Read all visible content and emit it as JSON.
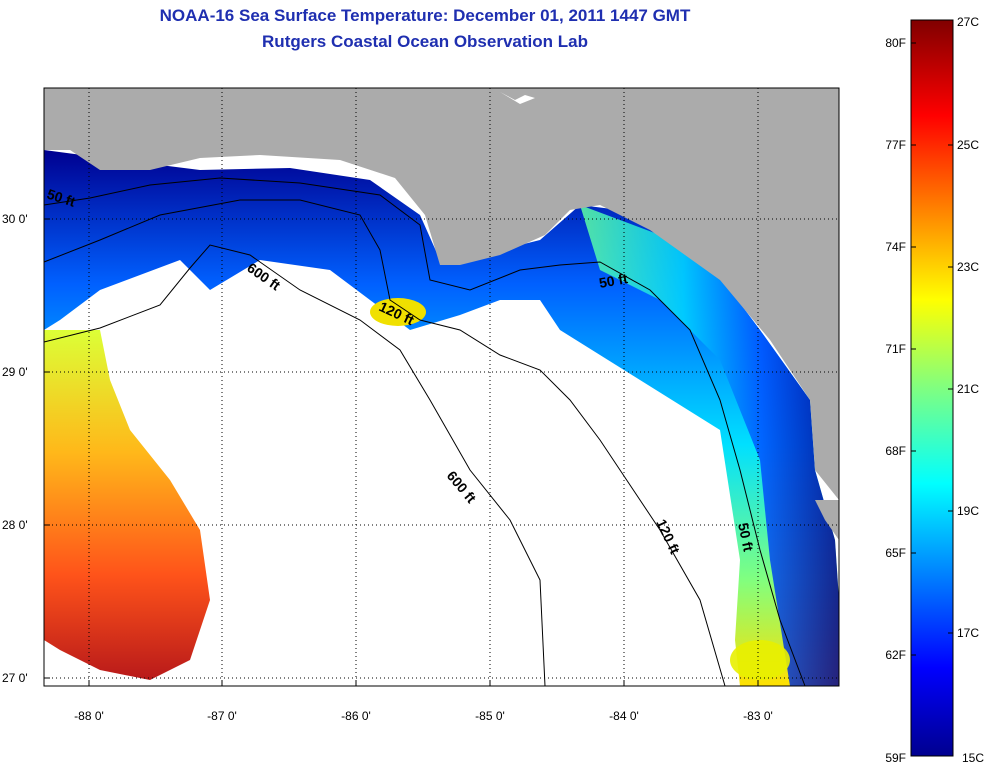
{
  "title_line1": "NOAA-16 Sea Surface Temperature:  December 01, 2011 1447 GMT",
  "title_line2": "Rutgers Coastal Ocean Observation Lab",
  "colors": {
    "land": "#ababab",
    "no_data": "#ffffff",
    "title": "#1f2fb0"
  },
  "map": {
    "lon_ticks": [
      "-88 0'",
      "-87 0'",
      "-86 0'",
      "-85 0'",
      "-84 0'",
      "-83 0'"
    ],
    "lat_ticks": [
      "30 0'",
      "29 0'",
      "28 0'",
      "27 0'"
    ],
    "contour_labels": [
      "50 ft",
      "600 ft",
      "120 ft",
      "50 ft",
      "600 ft",
      "120 ft",
      "50 ft"
    ]
  },
  "colorbar": {
    "celsius": [
      "27C",
      "25C",
      "23C",
      "21C",
      "19C",
      "17C",
      "15C"
    ],
    "fahrenheit": [
      "80F",
      "77F",
      "74F",
      "71F",
      "68F",
      "65F",
      "62F",
      "59F"
    ],
    "colormap": "jet"
  }
}
